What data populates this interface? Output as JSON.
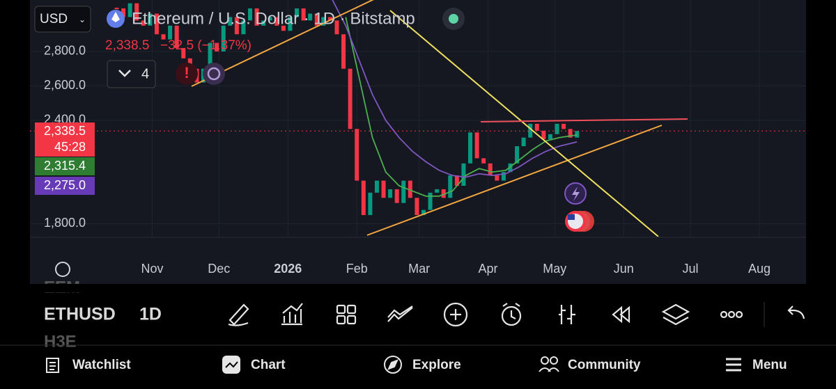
{
  "header": {
    "currency": "USD",
    "symbol_title": "Ethereum / U.S. Dollar · 1D · Bitstamp",
    "last_price": "2,338.5",
    "change": "−32.5 (−1.37%)",
    "indicator_count": "4"
  },
  "chart_data": {
    "type": "candlestick",
    "xlim": [
      -24,
      325
    ],
    "xticks": [
      {
        "value": 31,
        "label": "Nov"
      },
      {
        "value": 61,
        "label": "Dec"
      },
      {
        "value": 92,
        "label": "2026"
      },
      {
        "value": 123,
        "label": "Feb"
      },
      {
        "value": 151,
        "label": "Mar"
      },
      {
        "value": 182,
        "label": "Apr"
      },
      {
        "value": 212,
        "label": "May"
      },
      {
        "value": 243,
        "label": "Jun"
      },
      {
        "value": 273,
        "label": "Jul"
      },
      {
        "value": 304,
        "label": "Aug"
      }
    ],
    "ylim": [
      1725,
      3099
    ],
    "yticks": [
      {
        "value": 1800,
        "label": "1,800.0"
      },
      {
        "value": 2400,
        "label": "2,400.0"
      },
      {
        "value": 2600,
        "label": "2,600.0"
      },
      {
        "value": 2800,
        "label": "2,800.0"
      }
    ],
    "grid": true,
    "series": [
      {
        "type": "candlestick",
        "up_color": "#089981",
        "down_color": "#f23645",
        "x": [
          15,
          18,
          21,
          24,
          27,
          30,
          33,
          36,
          39,
          42,
          45,
          48,
          51,
          54,
          57,
          60,
          63,
          66,
          69,
          72,
          75,
          78,
          81,
          84,
          87,
          90,
          93,
          96,
          99,
          102,
          105,
          108,
          111,
          114,
          117,
          120,
          123,
          126,
          129,
          132,
          135,
          138,
          141,
          144,
          147,
          150,
          153,
          156,
          159,
          162,
          165,
          168,
          171,
          174,
          177,
          180,
          183,
          186,
          189,
          192,
          195,
          198,
          201,
          204,
          207,
          210,
          213,
          216,
          219,
          222
        ],
        "close": [
          3050,
          3000,
          3080,
          2980,
          2950,
          3020,
          2900,
          2870,
          2950,
          2820,
          2760,
          2700,
          2620,
          2700,
          2850,
          2800,
          2950,
          3000,
          2900,
          2980,
          3050,
          2950,
          2980,
          3000,
          2950,
          2920,
          3000,
          3050,
          2980,
          3020,
          2950,
          3000,
          2980,
          2900,
          2700,
          2350,
          2050,
          1850,
          1980,
          2050,
          1950,
          2000,
          1920,
          2050,
          1950,
          1850,
          1880,
          1980,
          2000,
          1950,
          2080,
          2020,
          2150,
          2330,
          2180,
          2150,
          2080,
          2050,
          2100,
          2150,
          2250,
          2300,
          2380,
          2340,
          2290,
          2320,
          2380,
          2350,
          2300,
          2338.5
        ]
      },
      {
        "type": "line",
        "color": "#4caf50",
        "x": [
          118,
          124,
          130,
          136,
          142,
          148,
          154,
          160,
          166,
          172,
          178,
          184,
          190,
          196,
          202,
          208,
          214,
          222
        ],
        "values": [
          3000,
          2650,
          2300,
          2100,
          2020,
          1990,
          1960,
          1960,
          1990,
          2080,
          2120,
          2100,
          2110,
          2170,
          2230,
          2280,
          2300,
          2315.4
        ]
      },
      {
        "type": "line",
        "color": "#7e57c2",
        "x": [
          112,
          118,
          124,
          130,
          136,
          142,
          148,
          154,
          160,
          166,
          172,
          178,
          184,
          190,
          196,
          202,
          208,
          214,
          222
        ],
        "values": [
          3100,
          2950,
          2750,
          2550,
          2400,
          2300,
          2220,
          2160,
          2110,
          2080,
          2070,
          2090,
          2080,
          2090,
          2130,
          2180,
          2220,
          2250,
          2275
        ]
      }
    ],
    "price_tags": [
      {
        "value": 2338.5,
        "label": "2,338.5",
        "color": "#f23645"
      },
      {
        "value": 2315.4,
        "label": "2,315.4",
        "color": "#2e7d32"
      },
      {
        "value": 2275,
        "label": "2,275.0",
        "color": "#673ab7"
      }
    ],
    "countdown": "45:28"
  },
  "toolbar": {
    "symbol": "ETHUSD",
    "interval": "1D",
    "ghost_above": "EEM",
    "ghost_below": "H3E"
  },
  "nav": [
    "Watchlist",
    "Chart",
    "Explore",
    "Community",
    "Menu"
  ]
}
